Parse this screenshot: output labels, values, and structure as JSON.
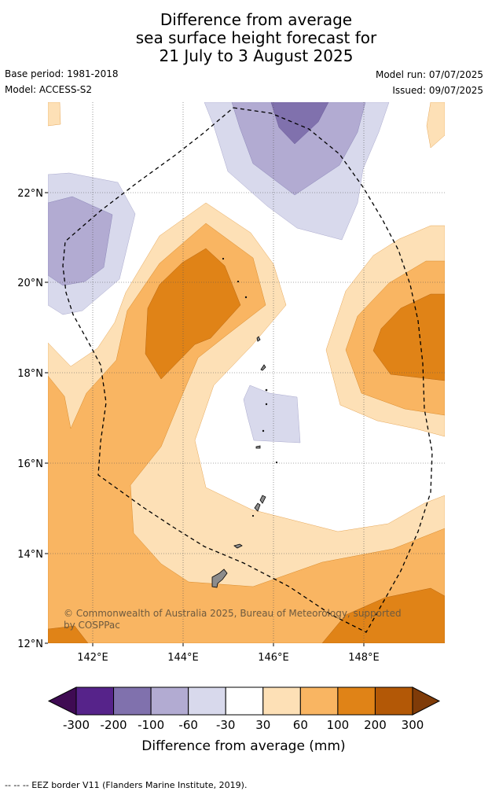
{
  "title": {
    "line1": "Difference from average",
    "line2": "sea surface height forecast for",
    "line3": "21 July to 3 August 2025"
  },
  "meta": {
    "base_period": "Base period: 1981-2018",
    "model": "Model: ACCESS-S2",
    "model_run": "Model run: 07/07/2025",
    "issued": "Issued: 09/07/2025"
  },
  "map": {
    "lon_ticks": [
      "142°E",
      "144°E",
      "146°E",
      "148°E"
    ],
    "lat_ticks": [
      "22°N",
      "20°N",
      "18°N",
      "16°N",
      "14°N",
      "12°N"
    ],
    "copyright_line1": "© Commonwealth of Australia 2025, Bureau of Meteorology, supported",
    "copyright_line2": "by COSPPac"
  },
  "colorbar": {
    "ticks": [
      "-300",
      "-200",
      "-100",
      "-60",
      "-30",
      "30",
      "60",
      "100",
      "200",
      "300"
    ],
    "label": "Difference from average (mm)",
    "colors": [
      "#3f0b53",
      "#56238a",
      "#8071ad",
      "#b2abd2",
      "#d8d9ec",
      "#ffffff",
      "#fde0b6",
      "#f9b562",
      "#e08317",
      "#b35806",
      "#7f3b08"
    ]
  },
  "footnote": "-- -- -- EEZ border V11 (Flanders Marine Institute, 2019)."
}
